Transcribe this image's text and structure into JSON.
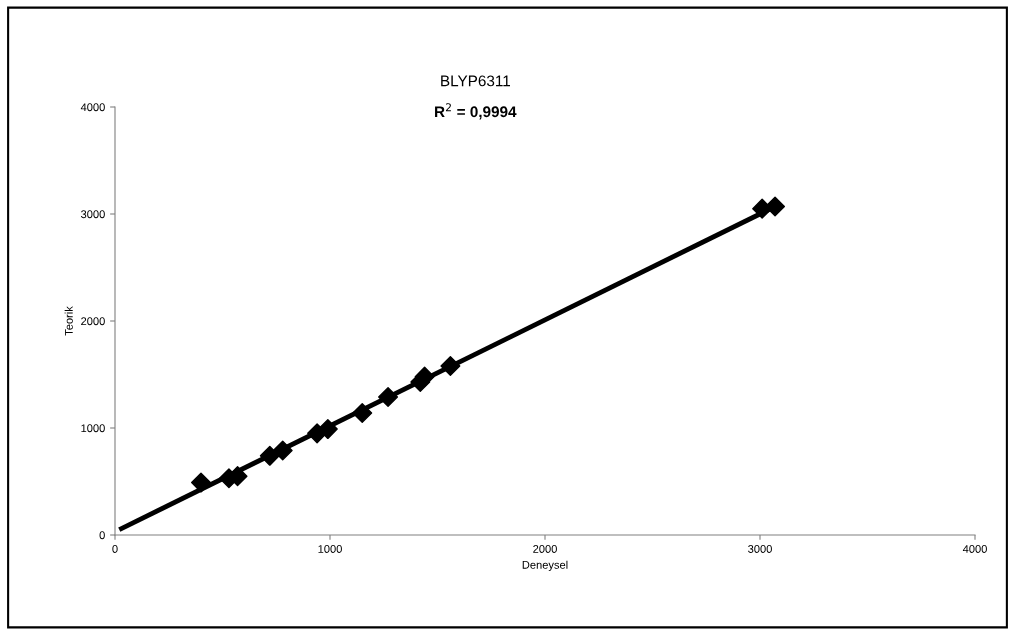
{
  "chart_data": {
    "type": "scatter",
    "title": "BLYP6311",
    "xlabel": "Deneysel",
    "ylabel": "Teorik",
    "annotations": [
      "R$^{2}$ = 0,9994"
    ],
    "x": [
      400,
      530,
      570,
      720,
      780,
      940,
      990,
      1150,
      1270,
      1420,
      1440,
      1560,
      3010,
      3070
    ],
    "series": [
      {
        "color": "#000000",
        "marker": "diamond",
        "values": [
          490,
          530,
          550,
          740,
          790,
          950,
          990,
          1140,
          1290,
          1430,
          1480,
          1580,
          3050,
          3070
        ]
      },
      {
        "type": "line",
        "color": "#000000",
        "x": [
          30,
          3070
        ],
        "values": [
          60,
          3070
        ],
        "line_style": "solid"
      }
    ],
    "xlim": [
      0,
      4000
    ],
    "ylim": [
      0,
      4000
    ],
    "xticks": [
      0,
      1000,
      2000,
      3000,
      4000
    ],
    "yticks": [
      0,
      1000,
      2000,
      3000,
      4000
    ],
    "grid": false,
    "legend": false
  }
}
